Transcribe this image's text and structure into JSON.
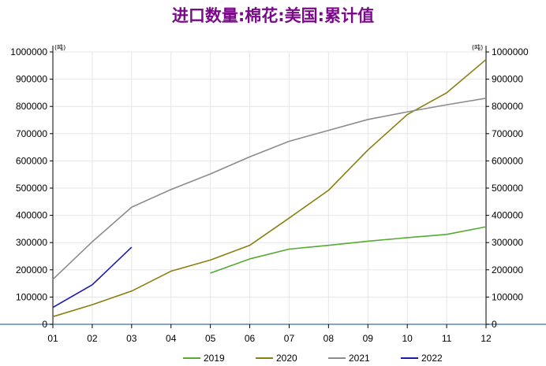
{
  "title": "进口数量:棉花:美国:累计值",
  "colors": {
    "title": "#7a0a8a",
    "grid": "#e6e6e6",
    "axis": "#000000",
    "baseline": "#3a6fa8"
  },
  "chart_data": {
    "type": "line",
    "title": "进口数量:棉花:美国:累计值",
    "categories": [
      "01",
      "02",
      "03",
      "04",
      "05",
      "06",
      "07",
      "08",
      "09",
      "10",
      "11",
      "12"
    ],
    "y_unit": "(吨)",
    "ylim": [
      0,
      1000000
    ],
    "yticks": [
      0,
      100000,
      200000,
      300000,
      400000,
      500000,
      600000,
      700000,
      800000,
      900000,
      1000000
    ],
    "ytick_labels": [
      "0",
      "100000",
      "200000",
      "300000",
      "400000",
      "500000",
      "600000",
      "700000",
      "800000",
      "900000",
      "1000000"
    ],
    "grid": true,
    "legend_position": "bottom",
    "series": [
      {
        "name": "2019",
        "color": "#55aa33",
        "values": [
          null,
          null,
          null,
          null,
          188000,
          240000,
          276000,
          290000,
          305000,
          318000,
          330000,
          358000
        ]
      },
      {
        "name": "2020",
        "color": "#8a7f10",
        "values": [
          28000,
          72000,
          122000,
          195000,
          236000,
          290000,
          390000,
          492000,
          640000,
          770000,
          850000,
          972000
        ]
      },
      {
        "name": "2021",
        "color": "#8c8c8c",
        "values": [
          165000,
          303000,
          430000,
          495000,
          552000,
          615000,
          672000,
          712000,
          752000,
          780000,
          806000,
          830000
        ]
      },
      {
        "name": "2022",
        "color": "#1a1aaa",
        "values": [
          62000,
          145000,
          283000,
          null,
          null,
          null,
          null,
          null,
          null,
          null,
          null,
          null
        ]
      }
    ]
  }
}
